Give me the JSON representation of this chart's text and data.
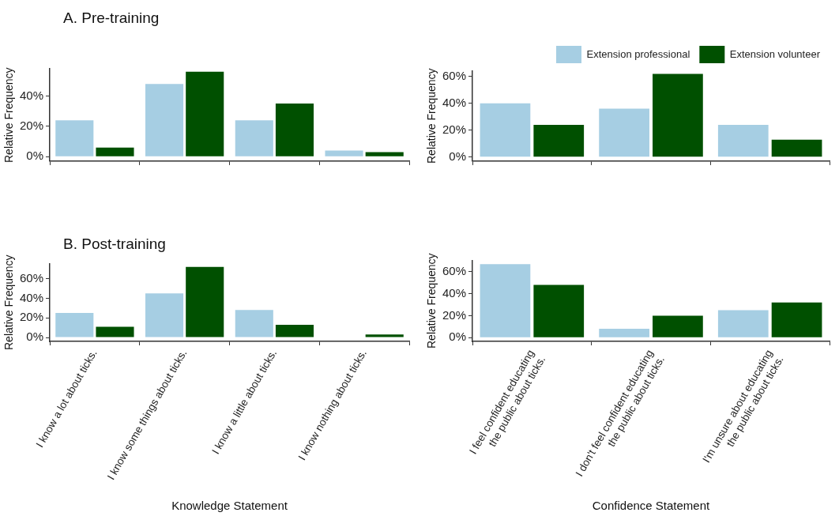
{
  "chart_data": [
    {
      "type": "bar",
      "title": "A. Pre-training",
      "ylabel": "Relative Frequency",
      "categories": [
        null,
        null,
        null,
        null
      ],
      "series": [
        {
          "color": "#a6cee3",
          "values": [
            24,
            48,
            24,
            4
          ]
        },
        {
          "color": "#005000",
          "values": [
            6,
            56,
            35,
            3
          ]
        }
      ],
      "ylim": [
        -3,
        58
      ],
      "yticks": [
        {
          "value": 0,
          "label": "0%"
        },
        {
          "value": 20,
          "label": "20%"
        },
        {
          "value": 40,
          "label": "40%"
        }
      ],
      "grid": false,
      "legend": false
    },
    {
      "type": "bar",
      "ylabel": "Relative Frequency",
      "categories": [
        null,
        null,
        null
      ],
      "series": [
        {
          "name": "Extension professional",
          "color": "#a6cee3",
          "values": [
            40,
            36,
            24
          ]
        },
        {
          "name": "Extension volunteer",
          "color": "#005000",
          "values": [
            24,
            62,
            13
          ]
        }
      ],
      "ylim": [
        -3,
        64
      ],
      "yticks": [
        {
          "value": 0,
          "label": "0%"
        },
        {
          "value": 20,
          "label": "20%"
        },
        {
          "value": 40,
          "label": "40%"
        },
        {
          "value": 60,
          "label": "60%"
        }
      ],
      "grid": false,
      "legend": "top"
    },
    {
      "type": "bar",
      "title": "B. Post-training",
      "xlabel": "Knowledge Statement",
      "ylabel": "Relative Frequency",
      "categories": [
        "I know a lot about ticks.",
        "I know some things about ticks.",
        "I know a little about ticks.",
        "I know nothing about ticks."
      ],
      "series": [
        {
          "color": "#a6cee3",
          "values": [
            25,
            45,
            28,
            0
          ]
        },
        {
          "color": "#005000",
          "values": [
            11,
            72,
            13,
            3
          ]
        }
      ],
      "ylim": [
        -4,
        75
      ],
      "yticks": [
        {
          "value": 0,
          "label": "0%"
        },
        {
          "value": 20,
          "label": "20%"
        },
        {
          "value": 40,
          "label": "40%"
        },
        {
          "value": 60,
          "label": "60%"
        }
      ],
      "grid": false,
      "legend": false
    },
    {
      "type": "bar",
      "xlabel": "Confidence Statement",
      "ylabel": "Relative Frequency",
      "categories": [
        "I feel confident educating\nthe public about ticks.",
        "I don't feel confident educating\nthe public about ticks.",
        "I'm unsure about educating\nthe public about ticks."
      ],
      "series": [
        {
          "color": "#a6cee3",
          "values": [
            67,
            8,
            25
          ]
        },
        {
          "color": "#005000",
          "values": [
            48,
            20,
            32
          ]
        }
      ],
      "ylim": [
        -3.5,
        70
      ],
      "yticks": [
        {
          "value": 0,
          "label": "0%"
        },
        {
          "value": 20,
          "label": "20%"
        },
        {
          "value": 40,
          "label": "40%"
        },
        {
          "value": 60,
          "label": "60%"
        }
      ],
      "grid": false,
      "legend": false
    }
  ]
}
